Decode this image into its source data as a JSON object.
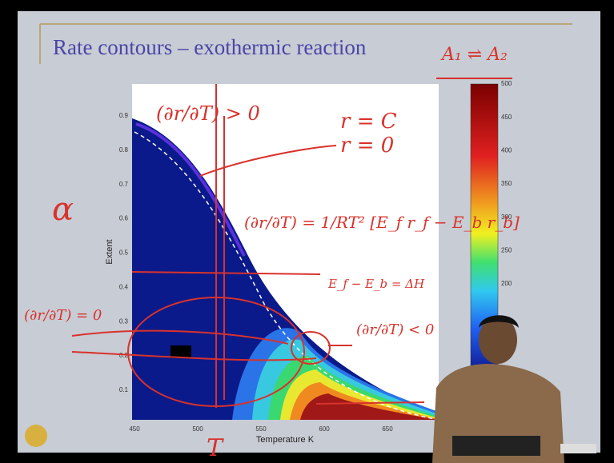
{
  "slide": {
    "title": "Rate contours – exothermic reaction"
  },
  "plot": {
    "y_label": "Extent",
    "x_label": "Temperature K",
    "yticks": [
      0.1,
      0.2,
      0.3,
      0.4,
      0.5,
      0.6,
      0.7,
      0.8,
      0.9
    ],
    "xticks": [
      450,
      500,
      550,
      600,
      650
    ]
  },
  "colorbar": {
    "ticks": [
      500,
      450,
      400,
      350,
      300,
      250,
      200
    ]
  },
  "annotations": {
    "reaction": "A₁ ⇌ A₂",
    "positive_slope": "(∂r/∂T) > 0",
    "r_const": "r = C",
    "r_zero": "r = 0",
    "alpha": "α",
    "derivative": "(∂r/∂T) = 1/RT² [E_f r_f − E_b r_b]",
    "enthalpy": "E_f − E_b = ΔH",
    "zero_slope": "(∂r/∂T) = 0",
    "negative_slope": "(∂r/∂T) < 0",
    "temperature": "T"
  }
}
